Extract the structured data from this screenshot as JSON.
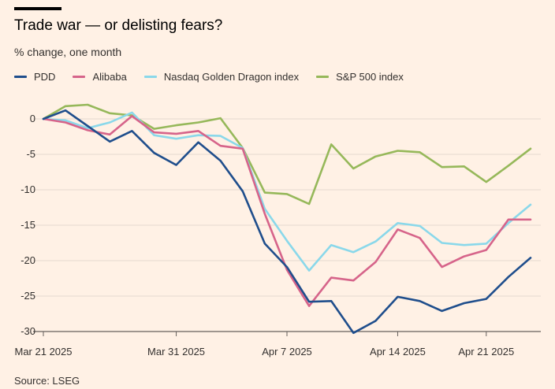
{
  "title": "Trade war — or delisting fears?",
  "subtitle": "% change, one month",
  "source": "Source: LSEG",
  "chart_data": {
    "type": "line",
    "title": "Trade war — or delisting fears?",
    "ylabel": "% change, one month",
    "ylim": [
      -30,
      2
    ],
    "yticks": [
      0,
      -5,
      -10,
      -15,
      -20,
      -25,
      -30
    ],
    "ytick_labels": [
      "0",
      "-5",
      "-10",
      "-15",
      "-20",
      "-25",
      "-30"
    ],
    "xticks": [
      {
        "label": "Mar 21 2025",
        "index": 0
      },
      {
        "label": "Mar 31 2025",
        "index": 6
      },
      {
        "label": "Apr 7 2025",
        "index": 11
      },
      {
        "label": "Apr 14 2025",
        "index": 16
      },
      {
        "label": "Apr 21 2025",
        "index": 20
      }
    ],
    "x": [
      "Mar 21",
      "Mar 24",
      "Mar 25",
      "Mar 26",
      "Mar 27",
      "Mar 28",
      "Mar 31",
      "Apr 1",
      "Apr 2",
      "Apr 3",
      "Apr 4",
      "Apr 7",
      "Apr 8",
      "Apr 9",
      "Apr 10",
      "Apr 11",
      "Apr 14",
      "Apr 15",
      "Apr 16",
      "Apr 17",
      "Apr 21",
      "Apr 22",
      "Apr 23"
    ],
    "series": [
      {
        "name": "PDD",
        "color": "#1F4E8C",
        "values": [
          0,
          1.2,
          -1.0,
          -3.2,
          -1.7,
          -4.8,
          -6.5,
          -3.3,
          -5.9,
          -10.2,
          -17.6,
          -20.9,
          -25.8,
          -25.7,
          -30.2,
          -28.5,
          -25.1,
          -25.7,
          -27.1,
          -26.0,
          -25.4,
          -22.3,
          -19.6
        ]
      },
      {
        "name": "Alibaba",
        "color": "#D6648A",
        "values": [
          0,
          -0.5,
          -1.6,
          -2.2,
          0.4,
          -1.9,
          -2.1,
          -1.7,
          -3.8,
          -4.2,
          -13.4,
          -21.3,
          -26.4,
          -22.4,
          -22.8,
          -20.2,
          -15.6,
          -16.8,
          -20.9,
          -19.4,
          -18.5,
          -14.2,
          -14.2
        ]
      },
      {
        "name": "Nasdaq Golden Dragon index",
        "color": "#8AD8EA",
        "values": [
          0,
          -0.2,
          -1.3,
          -0.5,
          0.9,
          -2.3,
          -2.8,
          -2.3,
          -2.4,
          -4.1,
          -12.7,
          -17.2,
          -21.4,
          -17.8,
          -18.8,
          -17.3,
          -14.7,
          -15.1,
          -17.5,
          -17.8,
          -17.6,
          -14.7,
          -12.1
        ]
      },
      {
        "name": "S&P 500 index",
        "color": "#96B85A",
        "values": [
          0,
          1.8,
          2.0,
          0.8,
          0.5,
          -1.4,
          -0.9,
          -0.5,
          0.1,
          -4.1,
          -10.4,
          -10.6,
          -12.0,
          -3.6,
          -7.0,
          -5.3,
          -4.5,
          -4.7,
          -6.8,
          -6.7,
          -8.9,
          -6.6,
          -4.2
        ]
      }
    ]
  }
}
